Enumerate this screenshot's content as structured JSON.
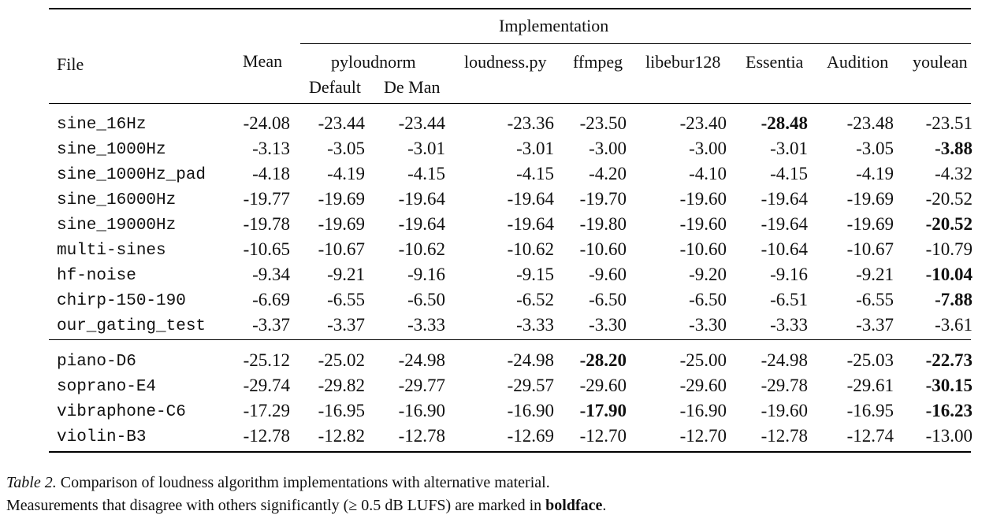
{
  "table": {
    "group_header": "Implementation",
    "columns": {
      "file": "File",
      "mean": "Mean",
      "pyloudnorm": "pyloudnorm",
      "pyloudnorm_default": "Default",
      "pyloudnorm_deman": "De Man",
      "loudness_py": "loudness.py",
      "ffmpeg": "ffmpeg",
      "libebur128": "libebur128",
      "essentia": "Essentia",
      "audition": "Audition",
      "youlean": "youlean"
    },
    "rows": [
      {
        "file": "sine_16Hz",
        "vals": [
          "-24.08",
          "-23.44",
          "-23.44",
          "-23.36",
          "-23.50",
          "-23.40",
          "-28.48",
          "-23.48",
          "-23.51"
        ],
        "bold": [
          6
        ]
      },
      {
        "file": "sine_1000Hz",
        "vals": [
          "-3.13",
          "-3.05",
          "-3.01",
          "-3.01",
          "-3.00",
          "-3.00",
          "-3.01",
          "-3.05",
          "-3.88"
        ],
        "bold": [
          8
        ]
      },
      {
        "file": "sine_1000Hz_pad",
        "vals": [
          "-4.18",
          "-4.19",
          "-4.15",
          "-4.15",
          "-4.20",
          "-4.10",
          "-4.15",
          "-4.19",
          "-4.32"
        ],
        "bold": []
      },
      {
        "file": "sine_16000Hz",
        "vals": [
          "-19.77",
          "-19.69",
          "-19.64",
          "-19.64",
          "-19.70",
          "-19.60",
          "-19.64",
          "-19.69",
          "-20.52"
        ],
        "bold": []
      },
      {
        "file": "sine_19000Hz",
        "vals": [
          "-19.78",
          "-19.69",
          "-19.64",
          "-19.64",
          "-19.80",
          "-19.60",
          "-19.64",
          "-19.69",
          "-20.52"
        ],
        "bold": [
          8
        ]
      },
      {
        "file": "multi-sines",
        "vals": [
          "-10.65",
          "-10.67",
          "-10.62",
          "-10.62",
          "-10.60",
          "-10.60",
          "-10.64",
          "-10.67",
          "-10.79"
        ],
        "bold": []
      },
      {
        "file": "hf-noise",
        "vals": [
          "-9.34",
          "-9.21",
          "-9.16",
          "-9.15",
          "-9.60",
          "-9.20",
          "-9.16",
          "-9.21",
          "-10.04"
        ],
        "bold": [
          8
        ]
      },
      {
        "file": "chirp-150-190",
        "vals": [
          "-6.69",
          "-6.55",
          "-6.50",
          "-6.52",
          "-6.50",
          "-6.50",
          "-6.51",
          "-6.55",
          "-7.88"
        ],
        "bold": [
          8
        ]
      },
      {
        "file": "our_gating_test",
        "vals": [
          "-3.37",
          "-3.37",
          "-3.33",
          "-3.33",
          "-3.30",
          "-3.30",
          "-3.33",
          "-3.37",
          "-3.61"
        ],
        "bold": []
      },
      {
        "file": "piano-D6",
        "vals": [
          "-25.12",
          "-25.02",
          "-24.98",
          "-24.98",
          "-28.20",
          "-25.00",
          "-24.98",
          "-25.03",
          "-22.73"
        ],
        "bold": [
          4,
          8
        ]
      },
      {
        "file": "soprano-E4",
        "vals": [
          "-29.74",
          "-29.82",
          "-29.77",
          "-29.57",
          "-29.60",
          "-29.60",
          "-29.78",
          "-29.61",
          "-30.15"
        ],
        "bold": [
          8
        ]
      },
      {
        "file": "vibraphone-C6",
        "vals": [
          "-17.29",
          "-16.95",
          "-16.90",
          "-16.90",
          "-17.90",
          "-16.90",
          "-19.60",
          "-16.95",
          "-16.23"
        ],
        "bold": [
          4,
          8
        ]
      },
      {
        "file": "violin-B3",
        "vals": [
          "-12.78",
          "-12.82",
          "-12.78",
          "-12.69",
          "-12.70",
          "-12.70",
          "-12.78",
          "-12.74",
          "-13.00"
        ],
        "bold": []
      }
    ]
  },
  "caption": {
    "label": "Table 2.",
    "line1": " Comparison of loudness algorithm implementations with alternative material.",
    "line2_pre": "Measurements that disagree with others significantly (",
    "line2_math": "≥ 0.5",
    "line2_mid": " dB LUFS) are marked in ",
    "line2_bold": "boldface",
    "line2_post": "."
  }
}
